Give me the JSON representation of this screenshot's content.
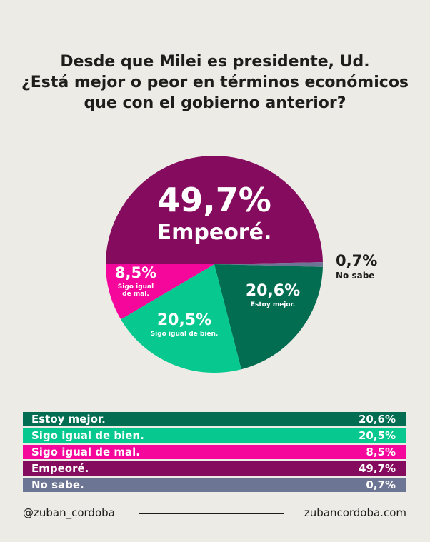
{
  "title": {
    "line1": "Desde que Milei es presidente, Ud.",
    "line2": "¿Está mejor o peor en términos económicos",
    "line3": "que con el gobierno anterior?"
  },
  "chart_data": {
    "type": "pie",
    "slices": [
      {
        "label": "Empeoré.",
        "value": 49.7,
        "display": "49,7%",
        "color": "#850b5e"
      },
      {
        "label": "No sabe",
        "value": 0.7,
        "display": "0,7%",
        "color": "#6c7594"
      },
      {
        "label": "Estoy mejor.",
        "value": 20.6,
        "display": "20,6%",
        "color": "#036d51"
      },
      {
        "label": "Sigo igual de bien.",
        "value": 20.5,
        "display": "20,5%",
        "color": "#07c98f"
      },
      {
        "label": "Sigo igual de mal.",
        "value": 8.5,
        "display": "8,5%",
        "color": "#f5079c"
      }
    ]
  },
  "table": {
    "rows": [
      {
        "label": "Estoy mejor.",
        "value": "20,6%",
        "color": "#036d51"
      },
      {
        "label": "Sigo igual de bien.",
        "value": "20,5%",
        "color": "#07c98f"
      },
      {
        "label": "Sigo igual de mal.",
        "value": "8,5%",
        "color": "#f5079c"
      },
      {
        "label": "Empeoré.",
        "value": "49,7%",
        "color": "#850b5e"
      },
      {
        "label": "No sabe.",
        "value": "0,7%",
        "color": "#6c7594"
      }
    ]
  },
  "footer": {
    "handle": "@zuban_cordoba",
    "site": "zubancordoba.com"
  }
}
